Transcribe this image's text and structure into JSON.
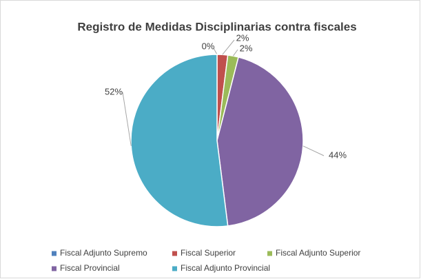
{
  "chart_data": {
    "type": "pie",
    "title": "Registro de Medidas Disciplinarias contra fiscales",
    "categories": [
      "Fiscal Adjunto Supremo",
      "Fiscal Superior",
      "Fiscal Adjunto Superior",
      "Fiscal Provincial",
      "Fiscal Adjunto Provincial"
    ],
    "values": [
      0,
      2,
      2,
      44,
      52
    ],
    "value_labels": [
      "0%",
      "2%",
      "2%",
      "44%",
      "52%"
    ],
    "colors": [
      "#4f81bd",
      "#c0504d",
      "#9bbb59",
      "#8064a2",
      "#4bacc6"
    ],
    "legend": "bottom"
  }
}
